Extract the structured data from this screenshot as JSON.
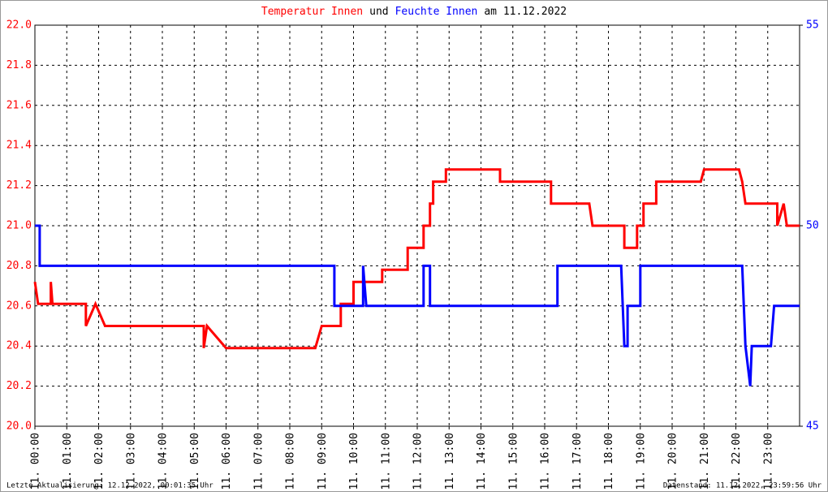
{
  "chart_data": {
    "type": "line",
    "title_parts": [
      {
        "text": "Temperatur Innen",
        "color": "#ff0000"
      },
      {
        "text": "und",
        "color": "#000000"
      },
      {
        "text": "Feuchte Innen",
        "color": "#0000ff"
      },
      {
        "text": "am 11.12.2022",
        "color": "#000000"
      }
    ],
    "footer_left": "Letzte Aktualisierung: 12.12.2022, 00:01:35 Uhr",
    "footer_right": "Datenstand: 11.12.2022, 23:59:56 Uhr",
    "grid": true,
    "xlim": [
      0,
      24
    ],
    "xticks": [
      {
        "value": 0,
        "label": "11. 00:00"
      },
      {
        "value": 1,
        "label": "11. 01:00"
      },
      {
        "value": 2,
        "label": "11. 02:00"
      },
      {
        "value": 3,
        "label": "11. 03:00"
      },
      {
        "value": 4,
        "label": "11. 04:00"
      },
      {
        "value": 5,
        "label": "11. 05:00"
      },
      {
        "value": 6,
        "label": "11. 06:00"
      },
      {
        "value": 7,
        "label": "11. 07:00"
      },
      {
        "value": 8,
        "label": "11. 08:00"
      },
      {
        "value": 9,
        "label": "11. 09:00"
      },
      {
        "value": 10,
        "label": "11. 10:00"
      },
      {
        "value": 11,
        "label": "11. 11:00"
      },
      {
        "value": 12,
        "label": "11. 12:00"
      },
      {
        "value": 13,
        "label": "11. 13:00"
      },
      {
        "value": 14,
        "label": "11. 14:00"
      },
      {
        "value": 15,
        "label": "11. 15:00"
      },
      {
        "value": 16,
        "label": "11. 16:00"
      },
      {
        "value": 17,
        "label": "11. 17:00"
      },
      {
        "value": 18,
        "label": "11. 18:00"
      },
      {
        "value": 19,
        "label": "11. 19:00"
      },
      {
        "value": 20,
        "label": "11. 20:00"
      },
      {
        "value": 21,
        "label": "11. 21:00"
      },
      {
        "value": 22,
        "label": "11. 22:00"
      },
      {
        "value": 23,
        "label": "11. 23:00"
      }
    ],
    "ylim": [
      20.0,
      22.0
    ],
    "yticks": [
      {
        "value": 20.0,
        "label": "20.0"
      },
      {
        "value": 20.2,
        "label": "20.2"
      },
      {
        "value": 20.4,
        "label": "20.4"
      },
      {
        "value": 20.6,
        "label": "20.6"
      },
      {
        "value": 20.8,
        "label": "20.8"
      },
      {
        "value": 21.0,
        "label": "21.0"
      },
      {
        "value": 21.2,
        "label": "21.2"
      },
      {
        "value": 21.4,
        "label": "21.4"
      },
      {
        "value": 21.6,
        "label": "21.6"
      },
      {
        "value": 21.8,
        "label": "21.8"
      },
      {
        "value": 22.0,
        "label": "22.0"
      }
    ],
    "y2lim": [
      45,
      55
    ],
    "y2ticks": [
      45,
      50,
      55
    ],
    "y_color": "#ff0000",
    "y2_color": "#0000ff",
    "series": [
      {
        "name": "Temperatur Innen",
        "color": "#ff0000",
        "x": [
          0,
          0.1,
          0.5,
          0.5,
          0.55,
          1.6,
          1.6,
          1.9,
          2.2,
          5.3,
          5.3,
          5.4,
          6.0,
          8.8,
          9.0,
          9.6,
          9.6,
          10.0,
          10.0,
          10.9,
          10.9,
          11.7,
          11.7,
          12.2,
          12.2,
          12.4,
          12.4,
          12.5,
          12.5,
          12.9,
          12.9,
          14.6,
          14.6,
          16.2,
          16.2,
          17.4,
          17.5,
          18.5,
          18.5,
          18.9,
          18.9,
          19.1,
          19.1,
          19.5,
          19.5,
          20.9,
          21.0,
          22.1,
          22.2,
          22.3,
          23.3,
          23.3,
          23.5,
          23.6,
          24
        ],
        "values": [
          20.72,
          20.61,
          20.61,
          20.72,
          20.61,
          20.61,
          20.5,
          20.61,
          20.5,
          20.5,
          20.39,
          20.5,
          20.39,
          20.39,
          20.5,
          20.5,
          20.61,
          20.61,
          20.72,
          20.72,
          20.78,
          20.78,
          20.89,
          20.89,
          21.0,
          21.0,
          21.11,
          21.11,
          21.22,
          21.22,
          21.28,
          21.28,
          21.22,
          21.22,
          21.11,
          21.11,
          21.0,
          21.0,
          20.89,
          20.89,
          21.0,
          21.0,
          21.11,
          21.11,
          21.22,
          21.22,
          21.28,
          21.28,
          21.22,
          21.11,
          21.11,
          21.0,
          21.11,
          21.0,
          21.0
        ]
      },
      {
        "name": "Feuchte Innen",
        "color": "#0000ff",
        "axis": "y2",
        "x": [
          0,
          0.15,
          0.15,
          9.4,
          9.4,
          10.3,
          10.3,
          10.4,
          12.2,
          12.2,
          12.4,
          12.4,
          16.4,
          16.4,
          18.4,
          18.5,
          18.6,
          18.6,
          19.0,
          19.0,
          22.2,
          22.3,
          22.45,
          22.5,
          23.1,
          23.2,
          24
        ],
        "values": [
          50,
          50,
          49,
          49,
          48,
          48,
          49,
          48,
          48,
          49,
          49,
          48,
          48,
          49,
          49,
          47,
          47,
          48,
          48,
          49,
          49,
          47,
          46,
          47,
          47,
          48,
          48
        ]
      }
    ]
  }
}
